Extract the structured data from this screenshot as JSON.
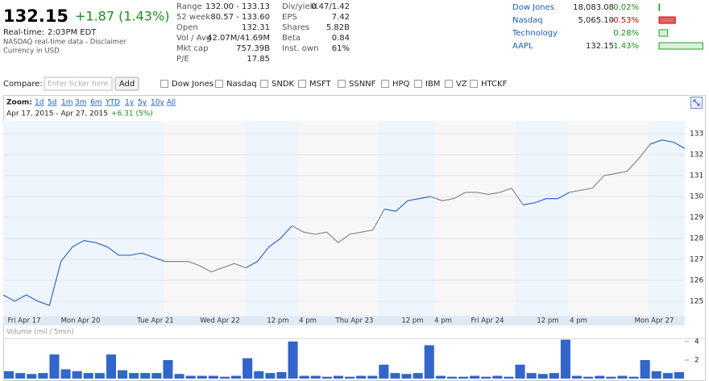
{
  "quote": {
    "price": "132.15",
    "change": "+1.87 (1.43%)",
    "realtime_label": "Real-time:",
    "realtime_time": "2:03PM EDT",
    "source": "NASDAQ real-time data - Disclaimer",
    "currency": "Currency in USD"
  },
  "stats": [
    [
      "Range",
      "132.00 - 133.13"
    ],
    [
      "52 week",
      "80.57 - 133.60"
    ],
    [
      "Open",
      "132.31"
    ],
    [
      "Vol / Avg",
      "42.07M/41.69M"
    ],
    [
      "Mkt cap",
      "757.39B"
    ],
    [
      "P/E",
      "17.85"
    ]
  ],
  "stats2": [
    [
      "Div/yield",
      "0.47/1.42"
    ],
    [
      "EPS",
      "7.42"
    ],
    [
      "Shares",
      "5.82B"
    ],
    [
      "Beta",
      "0.84"
    ],
    [
      "Inst. own",
      "61%"
    ]
  ],
  "markets": [
    {
      "name": "Dow Jones",
      "price": "18,083.08",
      "change": 0.02,
      "change_label": "0.02%"
    },
    {
      "name": "Nasdaq",
      "price": "5,065.10",
      "change": -0.53,
      "change_label": "-0.53%"
    },
    {
      "name": "Technology",
      "change": 0.28,
      "change_label": "0.28%"
    },
    {
      "name": "AAPL",
      "price": "132.15",
      "change": 1.43,
      "change_label": "1.43%"
    }
  ],
  "compare": {
    "label": "Compare:",
    "placeholder": "Enter ticker here",
    "button": "Add",
    "options": [
      "Dow Jones",
      "Nasdaq",
      "SNDK",
      "MSFT",
      "SSNNF",
      "HPQ",
      "IBM",
      "VZ",
      "HTCKF"
    ]
  },
  "chart_data": {
    "type": "line",
    "zoom_label": "Zoom:",
    "zoom_options": [
      "1d",
      "5d",
      "1m",
      "3m",
      "6m",
      "YTD",
      "1y",
      "5y",
      "10y",
      "All"
    ],
    "date_range": "Apr 17, 2015 - Apr 27, 2015",
    "range_change": "+6.31 (5%)",
    "x_labels": [
      "Fri Apr 17",
      "Mon Apr 20",
      "Tue Apr 21",
      "Wed Apr 22",
      "12 pm",
      "4 pm",
      "Thu Apr 23",
      "12 pm",
      "4 pm",
      "Fri Apr 24",
      "12 pm",
      "4 pm",
      "Mon Apr 27"
    ],
    "ylim": [
      124.3,
      133.6
    ],
    "yticks": [
      125,
      126,
      127,
      128,
      129,
      130,
      131,
      132,
      133
    ],
    "grid": true,
    "series": [
      {
        "color": "#3366cc",
        "values": [
          125.3,
          125.0,
          125.3,
          125.0,
          124.8,
          126.9,
          127.6,
          127.9,
          127.8,
          127.6,
          127.2,
          127.2,
          127.3,
          127.1,
          126.9,
          null,
          null,
          null,
          null,
          null,
          null,
          126.6,
          126.9,
          127.6,
          128.0,
          128.6,
          null,
          null,
          null,
          null,
          null,
          null,
          null,
          129.4,
          129.3,
          129.8,
          129.9,
          130.0,
          null,
          null,
          null,
          null,
          null,
          null,
          null,
          129.6,
          129.7,
          129.9,
          129.9,
          130.2,
          null,
          null,
          null,
          null,
          null,
          null,
          132.5,
          132.7,
          132.6,
          132.3
        ]
      },
      {
        "color": "#888888",
        "values": [
          null,
          null,
          null,
          null,
          null,
          null,
          null,
          null,
          null,
          null,
          null,
          null,
          null,
          null,
          126.9,
          126.9,
          126.9,
          126.7,
          126.4,
          126.6,
          126.8,
          126.6,
          null,
          null,
          null,
          128.6,
          128.3,
          128.2,
          128.3,
          127.8,
          128.2,
          128.3,
          128.4,
          129.4,
          null,
          null,
          null,
          130.0,
          129.8,
          129.9,
          130.2,
          130.2,
          130.1,
          130.2,
          130.4,
          129.6,
          null,
          null,
          null,
          130.2,
          130.3,
          130.4,
          131.0,
          131.1,
          131.2,
          131.8,
          132.5,
          null,
          null,
          null
        ]
      }
    ],
    "volume": {
      "label": "Volume (mil / 5min)",
      "color": "#3366cc",
      "ylim": [
        0,
        4.3
      ],
      "yticks": [
        2,
        4
      ],
      "values": [
        0.8,
        0.6,
        0.5,
        0.6,
        2.6,
        1.0,
        0.8,
        0.6,
        0.6,
        2.6,
        0.9,
        0.6,
        0.6,
        0.6,
        2.0,
        0.5,
        0.3,
        0.3,
        0.3,
        0.2,
        0.3,
        2.2,
        0.8,
        0.6,
        0.7,
        4.0,
        0.3,
        0.3,
        0.2,
        0.3,
        0.2,
        0.3,
        0.3,
        1.5,
        0.6,
        0.5,
        0.6,
        3.6,
        0.3,
        0.2,
        0.2,
        0.3,
        0.2,
        0.3,
        0.2,
        1.5,
        0.6,
        0.5,
        0.6,
        4.2,
        0.3,
        0.2,
        0.3,
        0.2,
        0.3,
        0.2,
        2.0,
        0.8,
        0.6,
        0.7
      ]
    }
  }
}
